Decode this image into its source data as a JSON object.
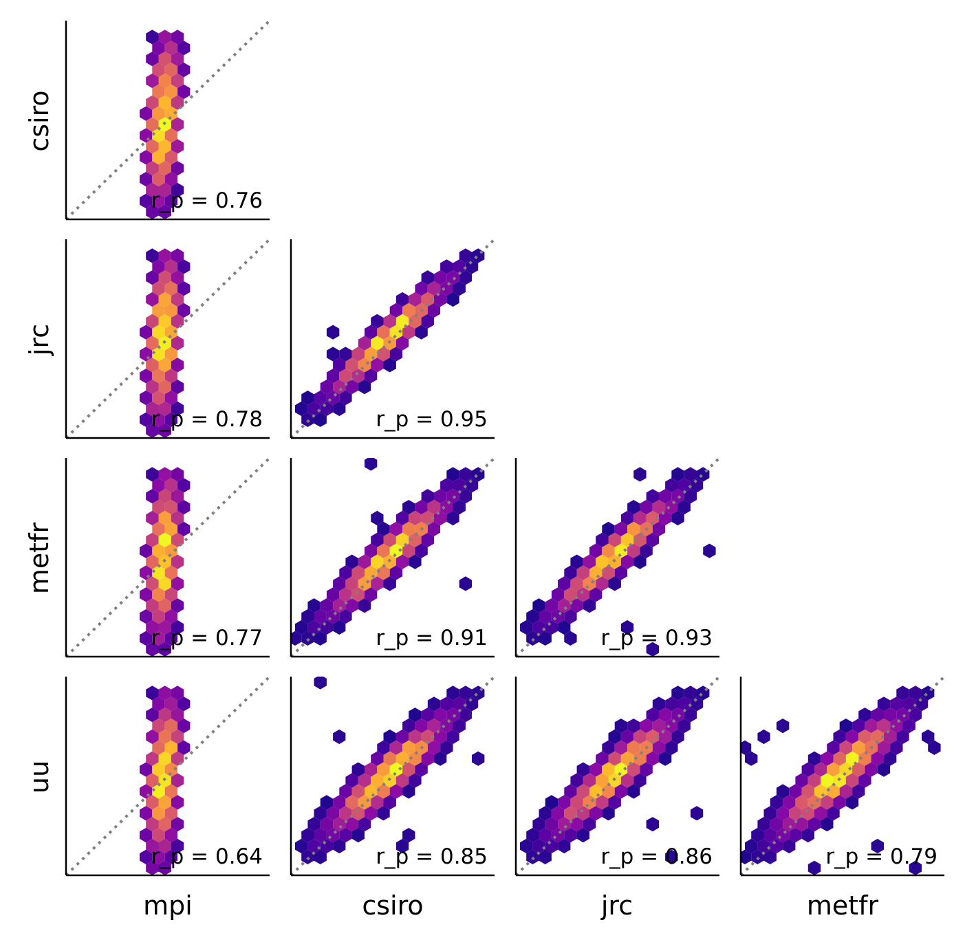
{
  "figure": {
    "colormap": "plasma",
    "row_labels": [
      "csiro",
      "jrc",
      "metfr",
      "uu"
    ],
    "col_labels": [
      "mpi",
      "csiro",
      "jrc",
      "metfr"
    ],
    "diagonal_line_color": "#808080"
  },
  "chart_data": [
    {
      "type": "hexbin",
      "x_label": "mpi",
      "y_label": "csiro",
      "r_p_label": "r_p = 0.76",
      "r_p": 0.76,
      "row": 0,
      "col": 0,
      "spread": "vertical"
    },
    {
      "type": "hexbin",
      "x_label": "mpi",
      "y_label": "jrc",
      "r_p_label": "r_p = 0.78",
      "r_p": 0.78,
      "row": 1,
      "col": 0,
      "spread": "vertical"
    },
    {
      "type": "hexbin",
      "x_label": "csiro",
      "y_label": "jrc",
      "r_p_label": "r_p = 0.95",
      "r_p": 0.95,
      "row": 1,
      "col": 1,
      "spread": "diagonal"
    },
    {
      "type": "hexbin",
      "x_label": "mpi",
      "y_label": "metfr",
      "r_p_label": "r_p = 0.77",
      "r_p": 0.77,
      "row": 2,
      "col": 0,
      "spread": "vertical"
    },
    {
      "type": "hexbin",
      "x_label": "csiro",
      "y_label": "metfr",
      "r_p_label": "r_p = 0.91",
      "r_p": 0.91,
      "row": 2,
      "col": 1,
      "spread": "diagonal"
    },
    {
      "type": "hexbin",
      "x_label": "jrc",
      "y_label": "metfr",
      "r_p_label": "r_p = 0.93",
      "r_p": 0.93,
      "row": 2,
      "col": 2,
      "spread": "diagonal"
    },
    {
      "type": "hexbin",
      "x_label": "mpi",
      "y_label": "uu",
      "r_p_label": "r_p = 0.64",
      "r_p": 0.64,
      "row": 3,
      "col": 0,
      "spread": "vertical"
    },
    {
      "type": "hexbin",
      "x_label": "csiro",
      "y_label": "uu",
      "r_p_label": "r_p = 0.85",
      "r_p": 0.85,
      "row": 3,
      "col": 1,
      "spread": "diagonal"
    },
    {
      "type": "hexbin",
      "x_label": "jrc",
      "y_label": "uu",
      "r_p_label": "r_p = 0.86",
      "r_p": 0.86,
      "row": 3,
      "col": 2,
      "spread": "diagonal"
    },
    {
      "type": "hexbin",
      "x_label": "metfr",
      "y_label": "uu",
      "r_p_label": "r_p = 0.79",
      "r_p": 0.79,
      "row": 3,
      "col": 3,
      "spread": "diagonal"
    }
  ]
}
